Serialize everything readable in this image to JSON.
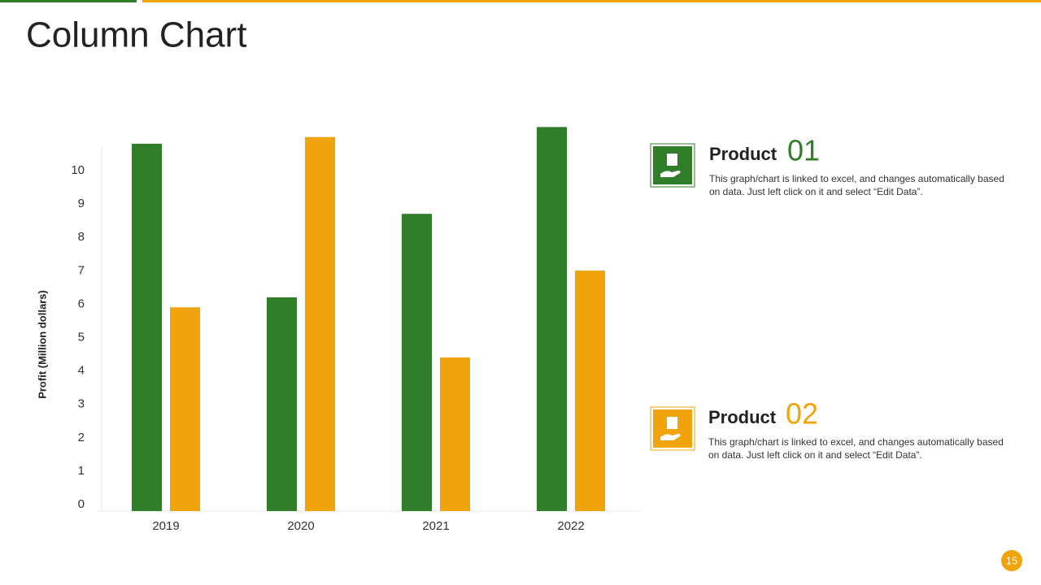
{
  "title": "Column Chart",
  "page_number": "15",
  "chart_data": {
    "type": "bar",
    "y_label": "Profit  (Million dollars)",
    "categories": [
      "2019",
      "2020",
      "2021",
      "2022"
    ],
    "series": [
      {
        "color": "#317e2a",
        "values": [
          11.0,
          6.4,
          8.9,
          11.5
        ]
      },
      {
        "color": "#f0a30a",
        "values": [
          6.1,
          11.2,
          4.6,
          7.2
        ]
      }
    ],
    "ylim": [
      0,
      12
    ],
    "yticks": [
      0,
      1,
      2,
      3,
      4,
      5,
      6,
      7,
      8,
      9,
      10
    ]
  },
  "products": [
    {
      "label": "Product",
      "number": "01",
      "text": "This graph/chart is linked to excel, and changes automatically based on data. Just left click on it and select “Edit Data”."
    },
    {
      "label": "Product",
      "number": "02",
      "text": "This graph/chart is linked to excel, and changes automatically based on data. Just left click on it and select “Edit Data”."
    }
  ]
}
